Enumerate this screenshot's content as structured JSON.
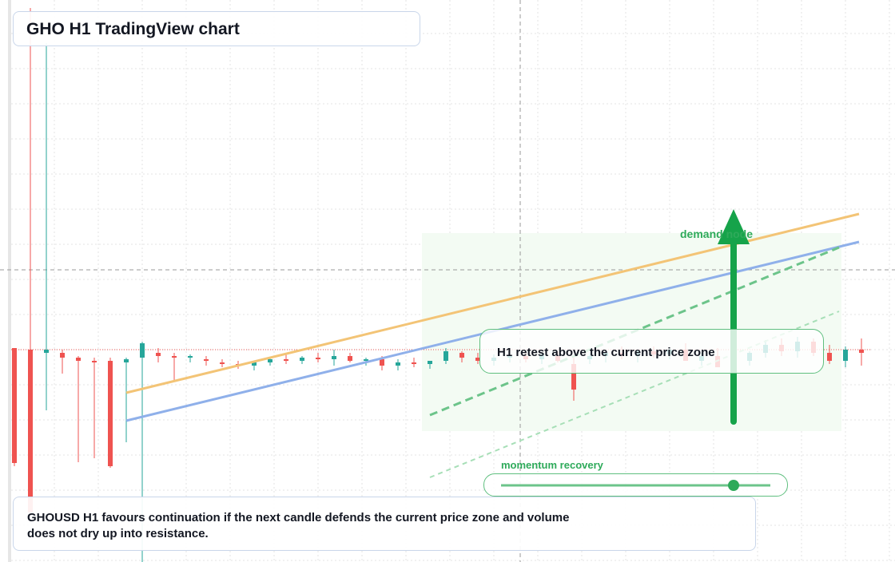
{
  "header": {
    "title": "GHO H1 TradingView chart"
  },
  "annotations": {
    "zone_label": "demand node",
    "callout": "H1 retest above the current price zone",
    "momentum": "momentum recovery"
  },
  "caption": "GHOUSD H1 favours continuation if the next candle defends the current price zone and volume does not dry up into resistance.",
  "chart_data": {
    "type": "candlestick",
    "ylim": [
      0,
      704
    ],
    "up_color": "#26a69a",
    "down_color": "#ef5350",
    "open": [
      268,
      266,
      262,
      262,
      256,
      252,
      252,
      250,
      256,
      262,
      258,
      256,
      254,
      250,
      248,
      246,
      250,
      254,
      252,
      256,
      254,
      258,
      252,
      254,
      246,
      250,
      248,
      252,
      262,
      256,
      252,
      256,
      258,
      254,
      258,
      248,
      254,
      258,
      262,
      258,
      264,
      260,
      266,
      252,
      258,
      244,
      252,
      262,
      272,
      264,
      276,
      262,
      252,
      266
    ],
    "high": [
      268,
      694,
      650,
      266,
      258,
      256,
      256,
      256,
      276,
      268,
      262,
      260,
      258,
      254,
      252,
      252,
      256,
      260,
      258,
      262,
      266,
      262,
      256,
      258,
      254,
      256,
      252,
      268,
      264,
      262,
      260,
      262,
      264,
      262,
      264,
      256,
      262,
      266,
      270,
      266,
      270,
      268,
      274,
      262,
      268,
      256,
      264,
      278,
      280,
      282,
      280,
      272,
      270,
      280
    ],
    "low": [
      120,
      60,
      190,
      236,
      125,
      130,
      118,
      150,
      0,
      250,
      226,
      250,
      246,
      244,
      242,
      240,
      246,
      248,
      248,
      250,
      246,
      250,
      246,
      240,
      240,
      244,
      242,
      248,
      250,
      248,
      246,
      250,
      250,
      248,
      250,
      202,
      248,
      250,
      254,
      250,
      256,
      254,
      256,
      246,
      248,
      238,
      246,
      256,
      258,
      256,
      258,
      248,
      244,
      246
    ],
    "close": [
      124,
      62,
      266,
      256,
      252,
      250,
      120,
      254,
      274,
      258,
      256,
      258,
      252,
      248,
      246,
      250,
      254,
      252,
      256,
      254,
      258,
      252,
      254,
      246,
      250,
      248,
      252,
      264,
      256,
      252,
      256,
      258,
      254,
      260,
      252,
      216,
      258,
      262,
      258,
      264,
      260,
      266,
      252,
      258,
      244,
      252,
      262,
      272,
      264,
      276,
      262,
      252,
      266,
      262
    ]
  }
}
